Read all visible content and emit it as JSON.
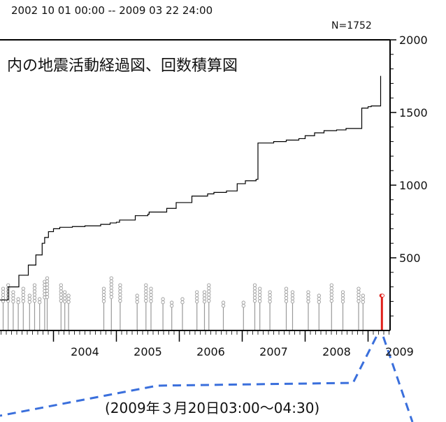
{
  "header": {
    "period": "2002 10 01 00:00 -- 2009 03 22 24:00",
    "count": "N=1752"
  },
  "chart_data": {
    "type": "line",
    "title": "内の地震活動経過図、回数積算図",
    "xlabel": "",
    "ylabel": "",
    "x_ticks": [
      "2004",
      "2005",
      "2006",
      "2007",
      "2008",
      "2009"
    ],
    "y_ticks": [
      "500",
      "1000",
      "1500",
      "2000"
    ],
    "ylim": [
      0,
      2000
    ],
    "xlim": [
      2003.15,
      2009.35
    ],
    "grid": false,
    "series": [
      {
        "name": "",
        "x": [
          2003.15,
          2003.28,
          2003.45,
          2003.6,
          2003.72,
          2003.82,
          2003.86,
          2003.92,
          2004.0,
          2004.1,
          2004.3,
          2004.5,
          2004.75,
          2004.9,
          2005.0,
          2005.05,
          2005.3,
          2005.5,
          2005.52,
          2005.8,
          2005.95,
          2006.2,
          2006.45,
          2006.55,
          2006.75,
          2006.92,
          2007.05,
          2007.22,
          2007.25,
          2007.5,
          2007.7,
          2007.9,
          2008.0,
          2008.15,
          2008.3,
          2008.5,
          2008.65,
          2008.9,
          2009.0,
          2009.05,
          2009.2
        ],
        "y": [
          210,
          300,
          380,
          450,
          520,
          600,
          640,
          680,
          700,
          710,
          715,
          720,
          730,
          740,
          745,
          760,
          790,
          800,
          815,
          840,
          880,
          925,
          940,
          950,
          960,
          1010,
          1030,
          1040,
          1290,
          1300,
          1310,
          1320,
          1340,
          1360,
          1375,
          1380,
          1390,
          1530,
          1540,
          1545,
          1752
        ]
      }
    ],
    "events": [
      {
        "t": 2003.2,
        "mag": 2.2
      },
      {
        "t": 2003.28,
        "mag": 2.3
      },
      {
        "t": 2003.36,
        "mag": 2.1
      },
      {
        "t": 2003.44,
        "mag": 1.9
      },
      {
        "t": 2003.52,
        "mag": 2.2
      },
      {
        "t": 2003.62,
        "mag": 2.0
      },
      {
        "t": 2003.7,
        "mag": 2.3
      },
      {
        "t": 2003.78,
        "mag": 1.9
      },
      {
        "t": 2003.86,
        "mag": 2.4
      },
      {
        "t": 2003.9,
        "mag": 2.5
      },
      {
        "t": 2004.12,
        "mag": 2.3
      },
      {
        "t": 2004.18,
        "mag": 2.1
      },
      {
        "t": 2004.24,
        "mag": 2.0
      },
      {
        "t": 2004.8,
        "mag": 2.2
      },
      {
        "t": 2004.92,
        "mag": 2.5
      },
      {
        "t": 2005.06,
        "mag": 2.3
      },
      {
        "t": 2005.33,
        "mag": 2.0
      },
      {
        "t": 2005.47,
        "mag": 2.3
      },
      {
        "t": 2005.55,
        "mag": 2.2
      },
      {
        "t": 2005.74,
        "mag": 1.9
      },
      {
        "t": 2005.88,
        "mag": 1.8
      },
      {
        "t": 2006.05,
        "mag": 1.9
      },
      {
        "t": 2006.28,
        "mag": 2.1
      },
      {
        "t": 2006.4,
        "mag": 2.1
      },
      {
        "t": 2006.47,
        "mag": 2.3
      },
      {
        "t": 2006.7,
        "mag": 1.8
      },
      {
        "t": 2007.02,
        "mag": 1.8
      },
      {
        "t": 2007.2,
        "mag": 2.3
      },
      {
        "t": 2007.28,
        "mag": 2.2
      },
      {
        "t": 2007.44,
        "mag": 2.1
      },
      {
        "t": 2007.7,
        "mag": 2.2
      },
      {
        "t": 2007.8,
        "mag": 2.1
      },
      {
        "t": 2008.05,
        "mag": 2.1
      },
      {
        "t": 2008.22,
        "mag": 2.0
      },
      {
        "t": 2008.42,
        "mag": 2.3
      },
      {
        "t": 2008.6,
        "mag": 2.1
      },
      {
        "t": 2008.85,
        "mag": 2.2
      },
      {
        "t": 2008.92,
        "mag": 2.0
      }
    ],
    "highlight_events": [
      {
        "t": 2009.21,
        "mag": 2.0
      },
      {
        "t": 2009.215,
        "mag": 2.0
      },
      {
        "t": 2009.22,
        "mag": 2.0
      },
      {
        "t": 2009.225,
        "mag": 2.0
      },
      {
        "t": 2009.23,
        "mag": 2.0
      }
    ]
  },
  "annotation": {
    "text": "(2009年３月20日03:00～04:30)"
  },
  "colors": {
    "axis": "#000000",
    "cumulative_line": "#000000",
    "event_stem": "#9a9a9a",
    "highlight": "#e0201b",
    "callout": "#3a6fdc"
  }
}
